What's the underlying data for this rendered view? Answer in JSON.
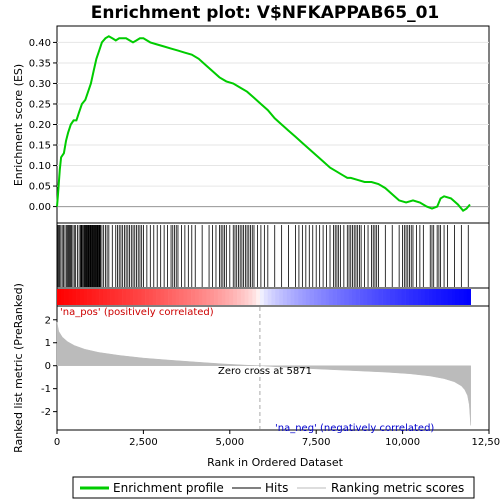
{
  "chart_data": {
    "type": "line",
    "title": "Enrichment plot: V$NFKAPPAB65_01",
    "ylabel_es": "Enrichment score (ES)",
    "ylabel_metric": "Ranked list metric (PreRanked)",
    "xlabel": "Rank in Ordered Dataset",
    "xlim": [
      0,
      12500
    ],
    "es_ylim": [
      -0.04,
      0.44
    ],
    "metric_ylim": [
      -2.8,
      2.6
    ],
    "x_ticks": [
      0,
      2500,
      5000,
      7500,
      10000,
      12500
    ],
    "x_tick_labels": [
      "0",
      "2,500",
      "5,000",
      "7,500",
      "10,000",
      "12,500"
    ],
    "es_ticks": [
      0.0,
      0.05,
      0.1,
      0.15,
      0.2,
      0.25,
      0.3,
      0.35,
      0.4
    ],
    "es_tick_labels": [
      "0.00",
      "0.05",
      "0.10",
      "0.15",
      "0.20",
      "0.25",
      "0.30",
      "0.35",
      "0.40"
    ],
    "metric_ticks": [
      -2,
      -1,
      0,
      1,
      2
    ],
    "metric_tick_labels": [
      "-2",
      "-1",
      "0",
      "1",
      "2"
    ],
    "zero_cross_rank": 5871,
    "zero_cross_label": "Zero cross at 5871",
    "pos_label": "'na_pos' (positively correlated)",
    "neg_label": "'na_neg' (negatively correlated)",
    "legend": [
      "Enrichment profile",
      "Hits",
      "Ranking metric scores"
    ],
    "colors": {
      "profile": "#00cc00",
      "hits": "#000000",
      "metric": "#bbbbbb",
      "pos": "#ff0000",
      "neg": "#0000ff"
    },
    "series": [
      {
        "name": "Enrichment profile",
        "points": [
          [
            0,
            0.0
          ],
          [
            30,
            0.03
          ],
          [
            80,
            0.09
          ],
          [
            120,
            0.12
          ],
          [
            200,
            0.13
          ],
          [
            260,
            0.16
          ],
          [
            320,
            0.18
          ],
          [
            400,
            0.2
          ],
          [
            480,
            0.21
          ],
          [
            560,
            0.21
          ],
          [
            640,
            0.23
          ],
          [
            720,
            0.25
          ],
          [
            820,
            0.26
          ],
          [
            900,
            0.28
          ],
          [
            980,
            0.3
          ],
          [
            1060,
            0.33
          ],
          [
            1140,
            0.36
          ],
          [
            1220,
            0.38
          ],
          [
            1300,
            0.4
          ],
          [
            1400,
            0.41
          ],
          [
            1500,
            0.415
          ],
          [
            1600,
            0.41
          ],
          [
            1700,
            0.405
          ],
          [
            1800,
            0.41
          ],
          [
            1900,
            0.41
          ],
          [
            2000,
            0.41
          ],
          [
            2100,
            0.405
          ],
          [
            2200,
            0.4
          ],
          [
            2300,
            0.405
          ],
          [
            2400,
            0.41
          ],
          [
            2500,
            0.41
          ],
          [
            2600,
            0.405
          ],
          [
            2700,
            0.4
          ],
          [
            2900,
            0.395
          ],
          [
            3100,
            0.39
          ],
          [
            3300,
            0.385
          ],
          [
            3500,
            0.38
          ],
          [
            3700,
            0.375
          ],
          [
            3900,
            0.37
          ],
          [
            4100,
            0.36
          ],
          [
            4300,
            0.345
          ],
          [
            4500,
            0.33
          ],
          [
            4700,
            0.315
          ],
          [
            4900,
            0.305
          ],
          [
            5100,
            0.3
          ],
          [
            5300,
            0.29
          ],
          [
            5500,
            0.28
          ],
          [
            5700,
            0.265
          ],
          [
            5900,
            0.25
          ],
          [
            6100,
            0.235
          ],
          [
            6300,
            0.215
          ],
          [
            6500,
            0.2
          ],
          [
            6700,
            0.185
          ],
          [
            6900,
            0.17
          ],
          [
            7100,
            0.155
          ],
          [
            7300,
            0.14
          ],
          [
            7500,
            0.125
          ],
          [
            7700,
            0.11
          ],
          [
            7900,
            0.095
          ],
          [
            8100,
            0.085
          ],
          [
            8200,
            0.08
          ],
          [
            8300,
            0.075
          ],
          [
            8400,
            0.07
          ],
          [
            8500,
            0.07
          ],
          [
            8700,
            0.065
          ],
          [
            8900,
            0.06
          ],
          [
            9100,
            0.06
          ],
          [
            9300,
            0.055
          ],
          [
            9500,
            0.045
          ],
          [
            9700,
            0.03
          ],
          [
            9900,
            0.015
          ],
          [
            10100,
            0.01
          ],
          [
            10300,
            0.015
          ],
          [
            10500,
            0.01
          ],
          [
            10700,
            0.0
          ],
          [
            10850,
            -0.005
          ],
          [
            11000,
            0.0
          ],
          [
            11100,
            0.02
          ],
          [
            11200,
            0.025
          ],
          [
            11400,
            0.02
          ],
          [
            11600,
            0.005
          ],
          [
            11750,
            -0.01
          ],
          [
            11850,
            -0.005
          ],
          [
            11950,
            0.005
          ]
        ]
      }
    ],
    "hits": [
      15,
      40,
      70,
      110,
      150,
      190,
      230,
      270,
      300,
      330,
      360,
      390,
      420,
      460,
      500,
      540,
      590,
      640,
      680,
      700,
      720,
      750,
      780,
      800,
      820,
      840,
      860,
      880,
      900,
      920,
      940,
      960,
      980,
      1000,
      1020,
      1040,
      1060,
      1080,
      1100,
      1120,
      1140,
      1160,
      1180,
      1200,
      1220,
      1240,
      1260,
      1300,
      1350,
      1400,
      1450,
      1500,
      1600,
      1700,
      1750,
      1800,
      1850,
      1900,
      1950,
      2000,
      2050,
      2100,
      2150,
      2200,
      2250,
      2300,
      2350,
      2400,
      2450,
      2500,
      2600,
      2700,
      2800,
      2900,
      3000,
      3100,
      3200,
      3300,
      3350,
      3400,
      3450,
      3500,
      3600,
      3700,
      3800,
      3900,
      4000,
      4200,
      4400,
      4500,
      4600,
      4700,
      4750,
      4800,
      4850,
      4900,
      5000,
      5100,
      5150,
      5200,
      5250,
      5300,
      5350,
      5400,
      5450,
      5500,
      5550,
      5600,
      5650,
      5700,
      5800,
      5900,
      6000,
      6100,
      6300,
      6500,
      6700,
      6900,
      7000,
      7100,
      7200,
      7300,
      7400,
      7500,
      7600,
      7700,
      7800,
      7900,
      8000,
      8050,
      8100,
      8150,
      8200,
      8300,
      8400,
      8450,
      8500,
      8550,
      8600,
      8650,
      8700,
      8750,
      8800,
      8900,
      9000,
      9100,
      9150,
      9200,
      9250,
      9300,
      9500,
      9700,
      9900,
      10000,
      10050,
      10100,
      10150,
      10200,
      10250,
      10300,
      10400,
      10500,
      10600,
      10800,
      10850,
      10900,
      11000,
      11050,
      11100,
      11200,
      11300,
      11500,
      11700,
      11900
    ],
    "metric": [
      [
        0,
        1.9
      ],
      [
        50,
        1.5
      ],
      [
        150,
        1.25
      ],
      [
        300,
        1.05
      ],
      [
        500,
        0.88
      ],
      [
        800,
        0.72
      ],
      [
        1200,
        0.58
      ],
      [
        1800,
        0.45
      ],
      [
        2500,
        0.33
      ],
      [
        3200,
        0.25
      ],
      [
        4000,
        0.16
      ],
      [
        4800,
        0.08
      ],
      [
        5500,
        0.02
      ],
      [
        5871,
        0.0
      ],
      [
        6500,
        -0.06
      ],
      [
        7500,
        -0.14
      ],
      [
        8500,
        -0.21
      ],
      [
        9500,
        -0.28
      ],
      [
        10200,
        -0.35
      ],
      [
        10800,
        -0.45
      ],
      [
        11200,
        -0.56
      ],
      [
        11500,
        -0.7
      ],
      [
        11700,
        -0.88
      ],
      [
        11800,
        -1.05
      ],
      [
        11880,
        -1.3
      ],
      [
        11930,
        -1.7
      ],
      [
        11970,
        -2.6
      ]
    ]
  }
}
